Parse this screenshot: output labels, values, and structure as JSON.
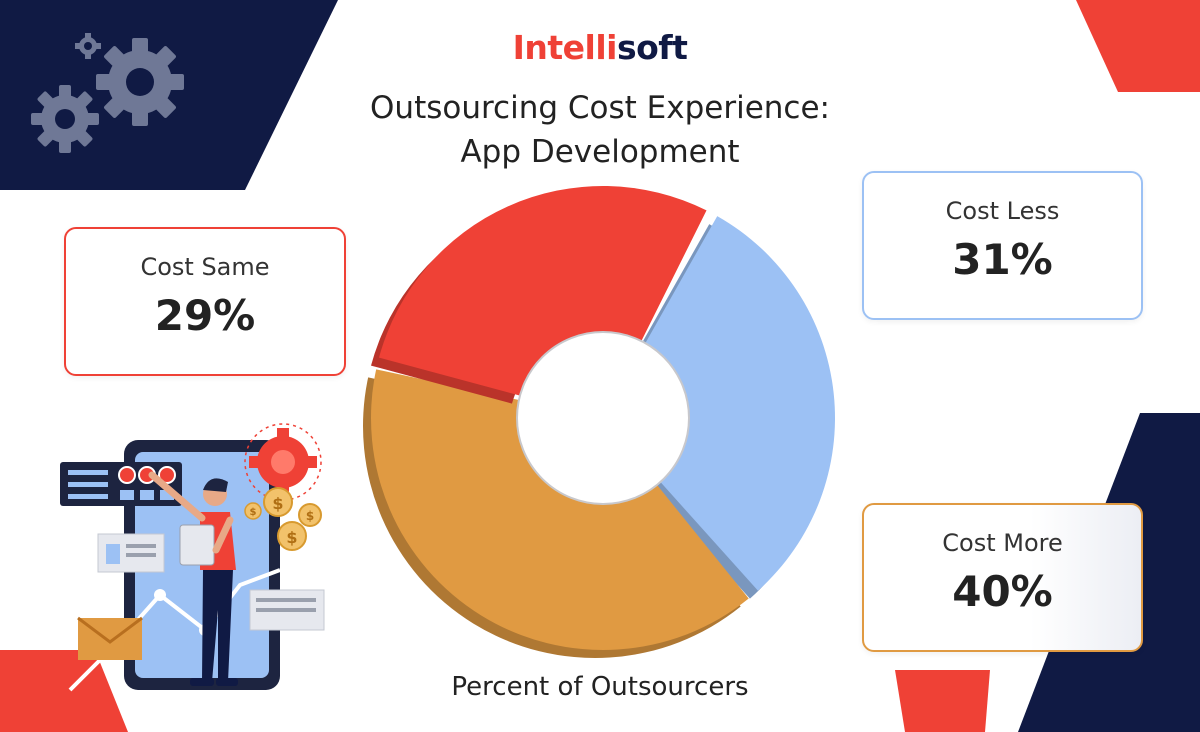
{
  "brand": {
    "part1": "Intelli",
    "part2": "soft"
  },
  "title_line1": "Outsourcing Cost Experience:",
  "title_line2": "App Development",
  "caption": "Percent of Outsourcers",
  "colors": {
    "navy": "#101a44",
    "red": "#ef4136",
    "blue": "#9cc1f4",
    "orange": "#e09a42"
  },
  "chart_data": {
    "type": "pie",
    "variant": "donut",
    "xlabel": "Percent of Outsourcers",
    "slices": [
      {
        "label": "Cost Less",
        "value": 31,
        "display": "31%",
        "color": "#9cc1f4"
      },
      {
        "label": "Cost More",
        "value": 40,
        "display": "40%",
        "color": "#e09a42"
      },
      {
        "label": "Cost Same",
        "value": 29,
        "display": "29%",
        "color": "#ef4136"
      }
    ]
  },
  "illustration": {
    "icons": [
      "gears-icon",
      "person-with-clipboard",
      "coin-icon",
      "envelope-icon",
      "like-icon"
    ],
    "coin_symbol": "$"
  }
}
